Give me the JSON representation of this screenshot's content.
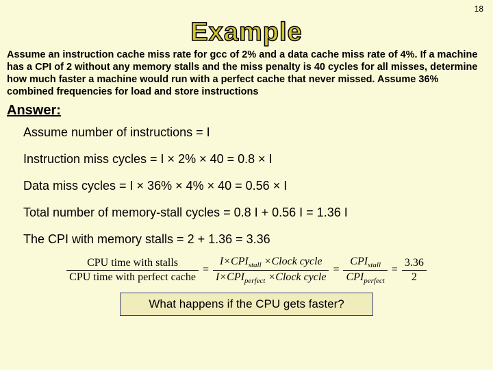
{
  "slide": {
    "background_color": "#fbfad8",
    "page_number": "18",
    "title": "Example",
    "title_color": "#d4c338",
    "problem_text": "Assume an instruction cache miss rate for gcc of 2% and a data cache miss rate of 4%. If a machine has a CPI of 2 without any memory stalls and the miss penalty is 40 cycles for all misses, determine how much faster a machine would run with a perfect cache that never missed. Assume 36% combined frequencies for load and store instructions",
    "answer_label": "Answer:",
    "answer_lines": {
      "l1": "Assume number of instructions = I",
      "l2": "Instruction miss cycles = I × 2% × 40 = 0.8 × I",
      "l3": "Data miss cycles = I × 36% × 4% × 40 = 0.56 × I",
      "l4": "Total number of memory-stall cycles = 0.8 I + 0.56 I = 1.36 I",
      "l5": "The CPI with memory stalls = 2 + 1.36 = 3.36"
    },
    "formula": {
      "left": {
        "num": "CPU time with stalls",
        "den": "CPU time with perfect cache"
      },
      "mid": {
        "num_prefix": "I×CPI",
        "num_sub": "stall",
        "num_suffix": " ×Clock cycle",
        "den_prefix": "I×CPI",
        "den_sub": "perfect",
        "den_suffix": " ×Clock cycle"
      },
      "right1": {
        "num_prefix": "CPI",
        "num_sub": "stall",
        "den_prefix": "CPI",
        "den_sub": "perfect"
      },
      "right2": {
        "num": "3.36",
        "den": "2"
      }
    },
    "callout": {
      "text": "What happens if the CPU gets faster?",
      "background_color": "#f1ecbb",
      "border_color": "#3b3b7a"
    }
  }
}
